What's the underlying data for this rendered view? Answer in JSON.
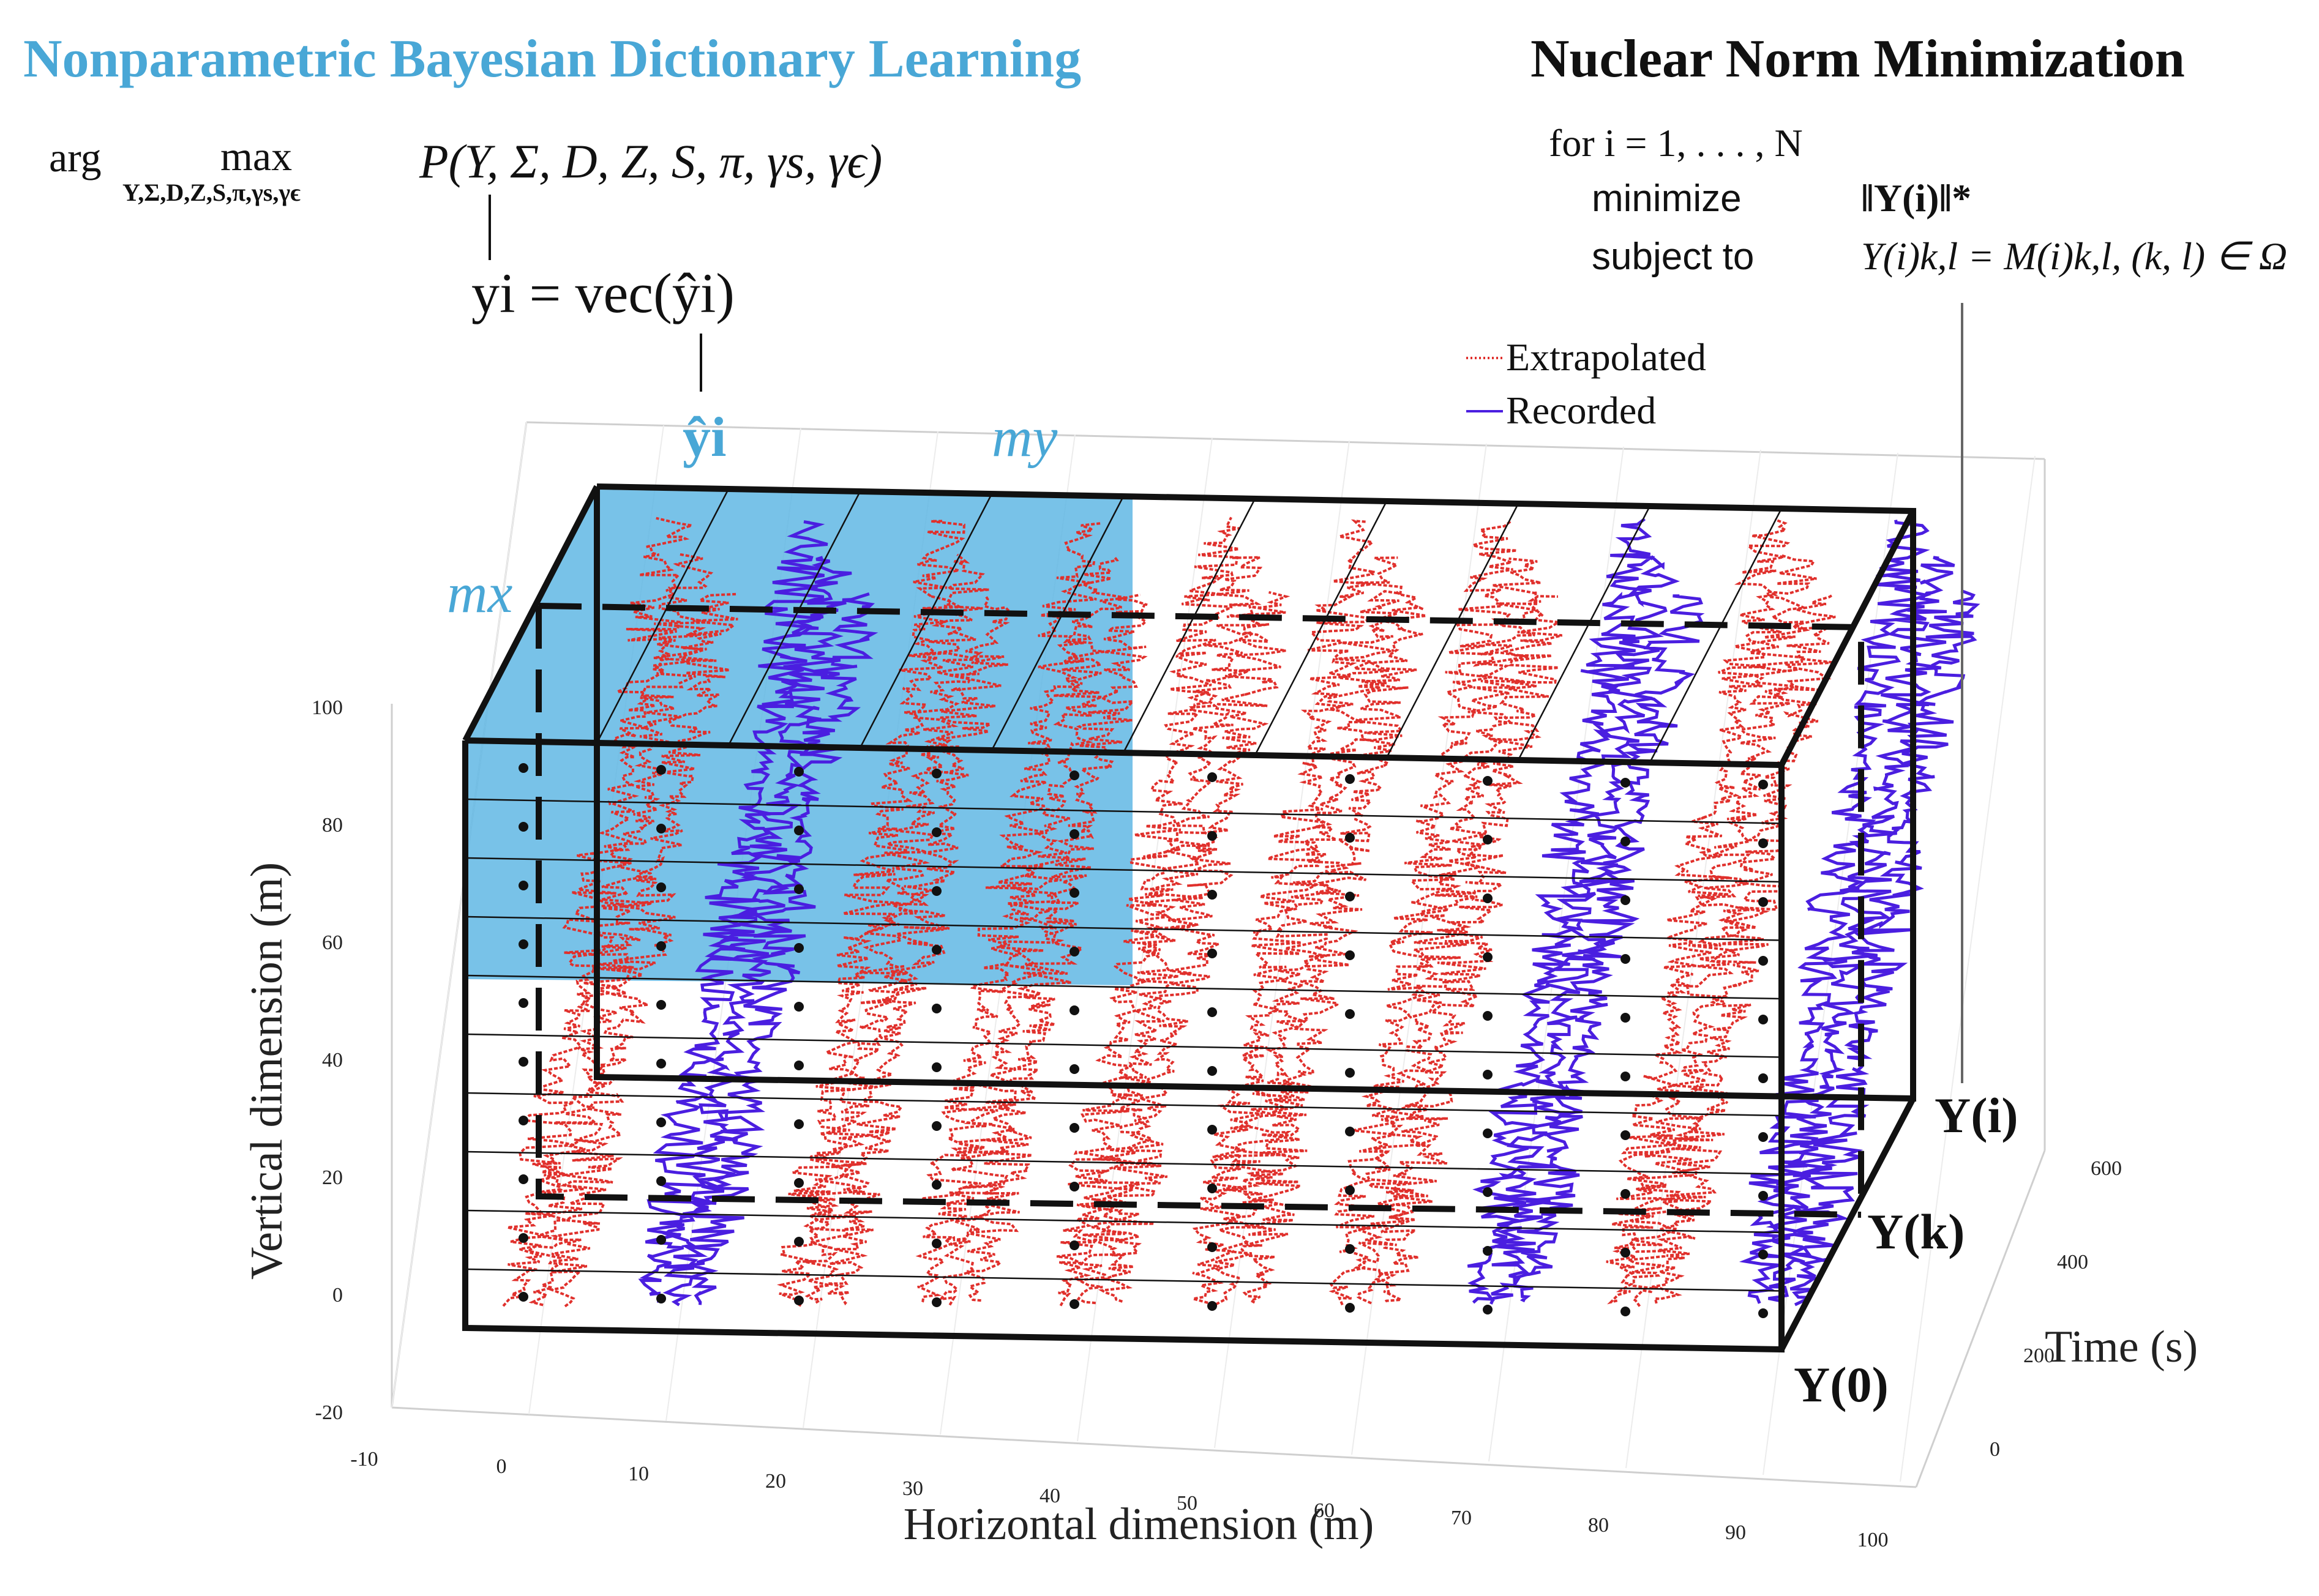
{
  "titles": {
    "left": "Nonparametric Bayesian Dictionary Learning",
    "right": "Nuclear Norm Minimization"
  },
  "equations": {
    "argmax_prefix": "arg",
    "argmax_word": "max",
    "argmax_sub": "Y,Σ,D,Z,S,π,γs,γϵ",
    "probability": "P(Y, Σ, D, Z, S, π, γs, γϵ)",
    "vec": "yi = vec(ŷi)",
    "yhat_label": "ŷi",
    "my_label": "my",
    "mx_label": "mx"
  },
  "nnm": {
    "loop": "for i = 1, . . . , N",
    "minimize_word": "minimize",
    "objective": "‖Y(i)‖*",
    "subject_word": "subject to",
    "constraint": "Y(i)k,l = M(i)k,l,    (k, l) ∈ Ω"
  },
  "legend": {
    "items": [
      {
        "label": "Extrapolated",
        "color": "#e0302c",
        "style": "dotted"
      },
      {
        "label": "Recorded",
        "color": "#4a1ee0",
        "style": "solid"
      }
    ]
  },
  "slice_labels": {
    "top": "Y(i)",
    "middle": "Y(k)",
    "bottom": "Y(0)"
  },
  "axes": {
    "vertical": {
      "label": "Vertical dimension (m)",
      "ticks": [
        "100",
        "80",
        "60",
        "40",
        "20",
        "0",
        "-20"
      ]
    },
    "horizontal": {
      "label": "Horizontal dimension (m)",
      "ticks": [
        "-10",
        "0",
        "10",
        "20",
        "30",
        "40",
        "50",
        "60",
        "70",
        "80",
        "90",
        "100"
      ]
    },
    "time": {
      "label": "Time (s)",
      "ticks": [
        "600",
        "400",
        "200",
        "0"
      ]
    }
  },
  "colors": {
    "accent": "#49a7d6",
    "extrapolated": "#e0302c",
    "recorded": "#4a1ee0",
    "highlight_fill": "#5ab5e3"
  },
  "trace_columns": {
    "pattern": [
      "extrapolated",
      "recorded",
      "extrapolated",
      "extrapolated",
      "extrapolated",
      "extrapolated",
      "extrapolated",
      "recorded",
      "extrapolated",
      "recorded"
    ],
    "recorded_lower": [
      0,
      1,
      2,
      3,
      4,
      5,
      6,
      7,
      8,
      9
    ],
    "recorded_upper": [
      1,
      3,
      5,
      7,
      9
    ]
  }
}
